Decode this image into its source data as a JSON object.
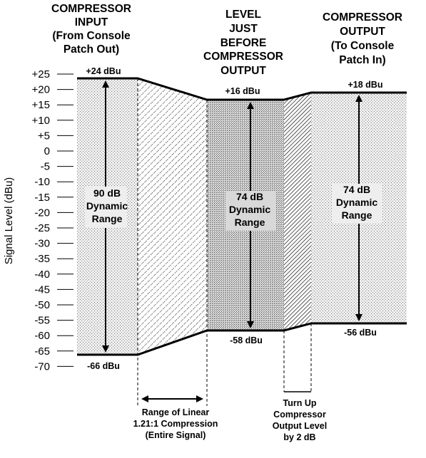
{
  "headers": {
    "input": [
      "COMPRESSOR",
      "INPUT",
      "(From Console",
      "Patch Out)"
    ],
    "middle": [
      "LEVEL",
      "JUST",
      "BEFORE",
      "COMPRESSOR",
      "OUTPUT"
    ],
    "output": [
      "COMPRESSOR",
      "OUTPUT",
      "(To Console",
      "Patch In)"
    ]
  },
  "y_axis": {
    "label": "Signal Level (dBu)",
    "ticks": [
      "+25",
      "+20",
      "+15",
      "+10",
      "+5",
      "0",
      "-5",
      "-10",
      "-15",
      "-20",
      "-25",
      "-30",
      "-35",
      "-40",
      "-45",
      "-50",
      "-55",
      "-60",
      "-65",
      "-70"
    ]
  },
  "levels": {
    "input_top": "+24 dBu",
    "input_bottom": "-66 dBu",
    "middle_top": "+16 dBu",
    "middle_bottom": "-58 dBu",
    "output_top": "+18 dBu",
    "output_bottom": "-56 dBu"
  },
  "dynamic_range": {
    "input": [
      "90 dB",
      "Dynamic",
      "Range"
    ],
    "middle": [
      "74 dB",
      "Dynamic",
      "Range"
    ],
    "output": [
      "74 dB",
      "Dynamic",
      "Range"
    ]
  },
  "notes": {
    "compression": [
      "Range of Linear",
      "1.21:1 Compression",
      "(Entire Signal)"
    ],
    "turnup": [
      "Turn Up",
      "Compressor",
      "Output Level",
      "by 2 dB"
    ]
  }
}
